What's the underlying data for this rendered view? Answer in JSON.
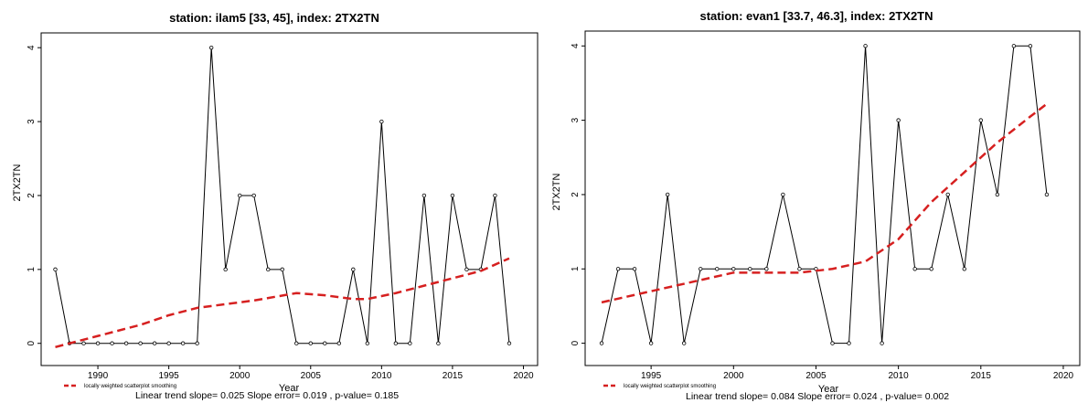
{
  "chart_data": [
    {
      "type": "line",
      "title": "station: ilam5 [33, 45], index: 2TX2TN",
      "xlabel": "Year",
      "ylabel": "2TX2TN",
      "xlim": [
        1986,
        2021
      ],
      "ylim": [
        -0.3,
        4.2
      ],
      "xticks": [
        1990,
        1995,
        2000,
        2005,
        2010,
        2015,
        2020
      ],
      "yticks": [
        0,
        1,
        2,
        3,
        4
      ],
      "series": [
        {
          "x": [
            1987,
            1988,
            1989,
            1990,
            1991,
            1992,
            1993,
            1994,
            1995,
            1996,
            1997,
            1998,
            1999,
            2000,
            2001,
            2002,
            2003,
            2004,
            2005,
            2006,
            2007,
            2008,
            2009,
            2010,
            2011,
            2012,
            2013,
            2014,
            2015,
            2016,
            2017,
            2018,
            2019
          ],
          "y": [
            1,
            0,
            0,
            0,
            0,
            0,
            0,
            0,
            0,
            0,
            0,
            4,
            1,
            2,
            2,
            1,
            1,
            0,
            0,
            0,
            0,
            1,
            0,
            3,
            0,
            0,
            2,
            0,
            2,
            1,
            1,
            2,
            0
          ]
        },
        {
          "name": "locally weighted scatterplot smoothing",
          "x": [
            1987,
            1990,
            1993,
            1995,
            1997,
            1999,
            2001,
            2004,
            2006,
            2008,
            2009,
            2011,
            2013,
            2015,
            2017,
            2019
          ],
          "y": [
            -0.05,
            0.1,
            0.25,
            0.38,
            0.48,
            0.53,
            0.58,
            0.68,
            0.65,
            0.6,
            0.6,
            0.68,
            0.78,
            0.88,
            0.98,
            1.15
          ]
        }
      ],
      "stats": "Linear trend slope= 0.025    Slope error= 0.019 ,   p-value= 0.185"
    },
    {
      "type": "line",
      "title": "station: evan1 [33.7, 46.3], index: 2TX2TN",
      "xlabel": "Year",
      "ylabel": "2TX2TN",
      "xlim": [
        1991,
        2021
      ],
      "ylim": [
        -0.3,
        4.2
      ],
      "xticks": [
        1995,
        2000,
        2005,
        2010,
        2015,
        2020
      ],
      "yticks": [
        0,
        1,
        2,
        3,
        4
      ],
      "series": [
        {
          "x": [
            1992,
            1993,
            1994,
            1995,
            1996,
            1997,
            1998,
            1999,
            2000,
            2001,
            2002,
            2003,
            2004,
            2005,
            2006,
            2007,
            2008,
            2009,
            2010,
            2011,
            2012,
            2013,
            2014,
            2015,
            2016,
            2017,
            2018,
            2019
          ],
          "y": [
            0,
            1,
            1,
            0,
            2,
            0,
            1,
            1,
            1,
            1,
            1,
            2,
            1,
            1,
            0,
            0,
            4,
            0,
            3,
            1,
            1,
            2,
            1,
            3,
            2,
            4,
            4,
            2
          ]
        },
        {
          "name": "locally weighted scatterplot smoothing",
          "x": [
            1992,
            1995,
            1998,
            2000,
            2002,
            2004,
            2006,
            2008,
            2010,
            2012,
            2014,
            2016,
            2018,
            2019
          ],
          "y": [
            0.55,
            0.7,
            0.85,
            0.95,
            0.95,
            0.95,
            1.0,
            1.1,
            1.4,
            1.9,
            2.3,
            2.7,
            3.05,
            3.22
          ]
        }
      ],
      "stats": "Linear trend slope= 0.084    Slope error= 0.024 ,   p-value= 0.002"
    }
  ],
  "legend_label": "locally weighted scatterplot smoothing",
  "colors": {
    "smooth": "#d62020",
    "data": "#000000",
    "axis": "#000000"
  }
}
